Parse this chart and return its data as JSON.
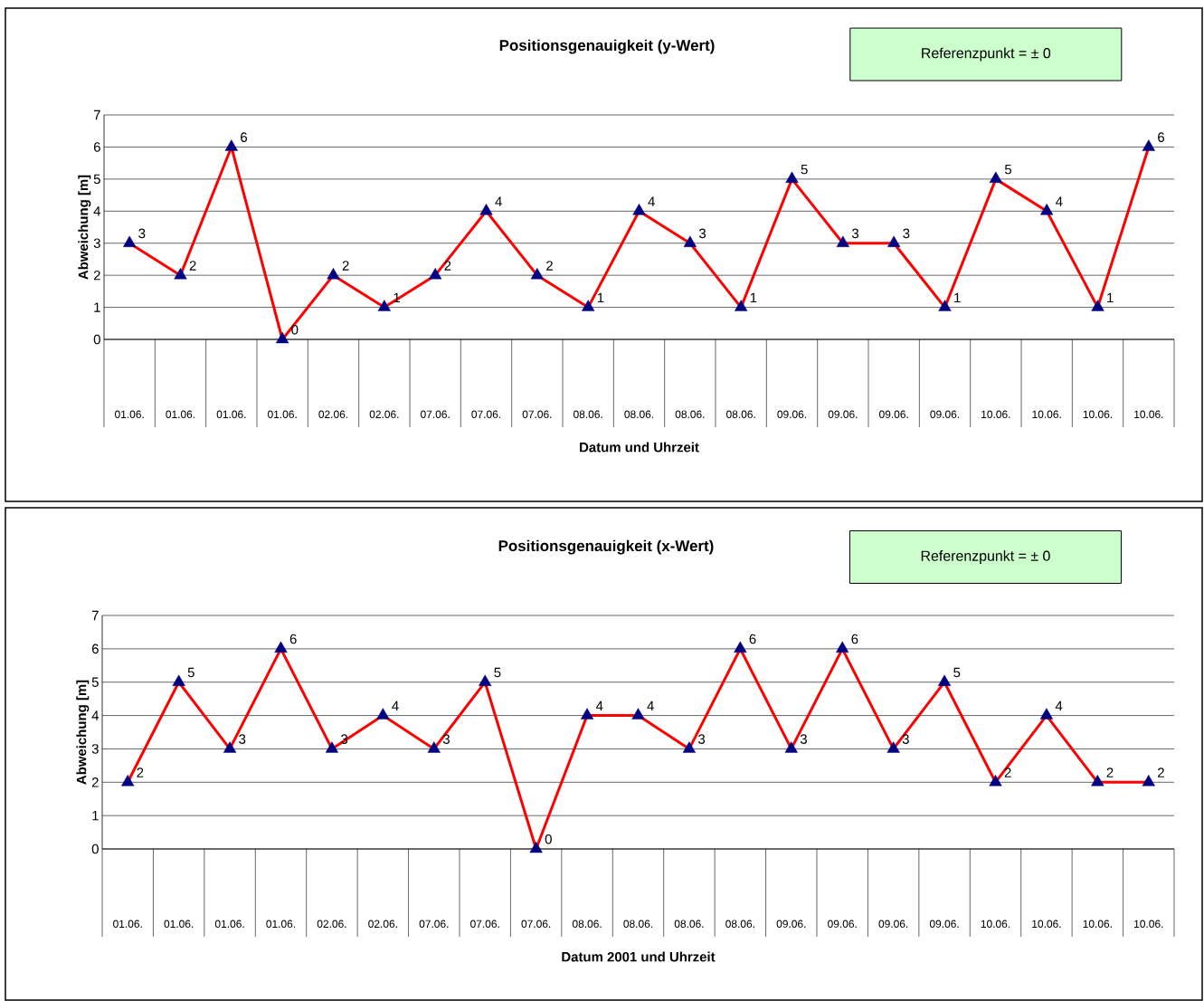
{
  "chart_data": [
    {
      "type": "line",
      "title": "Positionsgenauigkeit (y-Wert)",
      "xlabel": "Datum und Uhrzeit",
      "ylabel": "Abweichung [m]",
      "categories": [
        "01.06.",
        "01.06.",
        "01.06.",
        "01.06.",
        "02.06.",
        "02.06.",
        "07.06.",
        "07.06.",
        "07.06.",
        "08.06.",
        "08.06.",
        "08.06.",
        "08.06.",
        "09.06.",
        "09.06.",
        "09.06.",
        "09.06.",
        "10.06.",
        "10.06.",
        "10.06.",
        "10.06."
      ],
      "values": [
        3,
        2,
        6,
        0,
        2,
        1,
        2,
        4,
        2,
        1,
        4,
        3,
        1,
        5,
        3,
        3,
        1,
        5,
        4,
        1,
        6
      ],
      "color": "#ff0000",
      "colors": [
        "#000080",
        "#000080",
        "#000080",
        "#000080",
        "#000080",
        "#000080",
        "#000080",
        "#000080",
        "#000080",
        "#000080",
        "#000080",
        "#000080",
        "#000080",
        "#000080",
        "#000080",
        "#000080",
        "#000080",
        "#000080",
        "#000080",
        "#000080",
        "#000080"
      ],
      "marker": "triangle",
      "line_style": "solid",
      "ylim": [
        0,
        7
      ],
      "yticks": [
        0,
        1,
        2,
        3,
        4,
        5,
        6,
        7
      ],
      "grid": "y",
      "data_labels": true,
      "annotations": [
        "Referenzpunkt = ± 0"
      ]
    },
    {
      "type": "line",
      "title": "Positionsgenauigkeit (x-Wert)",
      "xlabel": "Datum 2001 und Uhrzeit",
      "ylabel": "Abweichung [m]",
      "categories": [
        "01.06.",
        "01.06.",
        "01.06.",
        "01.06.",
        "02.06.",
        "02.06.",
        "07.06.",
        "07.06.",
        "07.06.",
        "08.06.",
        "08.06.",
        "08.06.",
        "08.06.",
        "09.06.",
        "09.06.",
        "09.06.",
        "09.06.",
        "10.06.",
        "10.06.",
        "10.06.",
        "10.06."
      ],
      "values": [
        2,
        5,
        3,
        6,
        3,
        4,
        3,
        5,
        0,
        4,
        4,
        3,
        6,
        3,
        6,
        3,
        5,
        2,
        4,
        2,
        2
      ],
      "color": "#ff0000",
      "colors": [
        "#000080",
        "#000080",
        "#000080",
        "#000080",
        "#000080",
        "#000080",
        "#000080",
        "#000080",
        "#000080",
        "#000080",
        "#000080",
        "#000080",
        "#000080",
        "#000080",
        "#000080",
        "#000080",
        "#000080",
        "#000080",
        "#000080",
        "#000080",
        "#000080"
      ],
      "marker": "triangle",
      "line_style": "solid",
      "ylim": [
        0,
        7
      ],
      "yticks": [
        0,
        1,
        2,
        3,
        4,
        5,
        6,
        7
      ],
      "grid": "y",
      "data_labels": true,
      "annotations": [
        "Referenzpunkt = ± 0"
      ]
    }
  ]
}
